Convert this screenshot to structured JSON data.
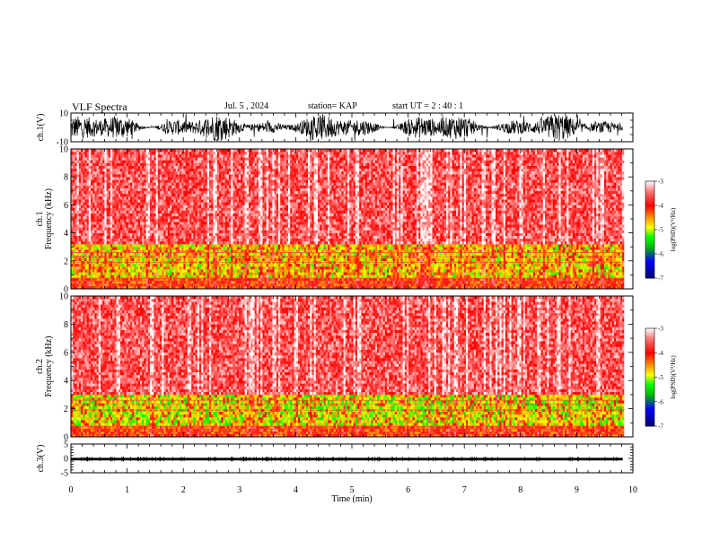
{
  "header": {
    "title": "VLF Spectra",
    "date": "Jul. 5 , 2024",
    "station": "station= KAP",
    "start": "start UT = 2 : 40 : 1"
  },
  "colors": {
    "background": "#ffffff",
    "spectrogram_scale": [
      "#00006e",
      "#0000ff",
      "#00b000",
      "#00ff00",
      "#ffff00",
      "#ff0000",
      "#ffffff"
    ]
  },
  "chart_data": [
    {
      "type": "line",
      "name": "ch1-waveform",
      "ylabel": "ch.1(V)",
      "ylim": [
        -10,
        10
      ],
      "yticks": [
        "10",
        "-10"
      ],
      "description_values": {
        "amplitude_min": -10,
        "amplitude_max": 10
      }
    },
    {
      "type": "heatmap",
      "name": "ch1-spectrogram",
      "ylabel": "ch.1 Frequency (kHz)",
      "ylim": [
        0,
        10
      ],
      "yticks": [
        "0",
        "2",
        "4",
        "6",
        "8",
        "10"
      ],
      "xlim": [
        0,
        10
      ],
      "colorbar": {
        "label": "log(PSD)(V²/Hz)",
        "range": [
          -7,
          -3
        ],
        "ticks": [
          "-3",
          "-4",
          "-5",
          "-6",
          "-7"
        ]
      },
      "bands": [
        {
          "range_khz": [
            0,
            0.8
          ],
          "level": -4.2
        },
        {
          "range_khz": [
            0.8,
            3.2
          ],
          "level": -4.8
        },
        {
          "range_khz": [
            3.2,
            10
          ],
          "level": -3.6
        }
      ]
    },
    {
      "type": "heatmap",
      "name": "ch2-spectrogram",
      "ylabel": "ch.2 Frequency (kHz)",
      "ylim": [
        0,
        10
      ],
      "yticks": [
        "0",
        "2",
        "4",
        "6",
        "8",
        "10"
      ],
      "xlim": [
        0,
        10
      ],
      "colorbar": {
        "label": "log(PSD)(V²/Hz)",
        "range": [
          -7,
          -3
        ],
        "ticks": [
          "-3",
          "-4",
          "-5",
          "-6",
          "-7"
        ]
      },
      "bands": [
        {
          "range_khz": [
            0,
            0.8
          ],
          "level": -4.2
        },
        {
          "range_khz": [
            0.8,
            3.0
          ],
          "level": -5.0
        },
        {
          "range_khz": [
            3.0,
            10
          ],
          "level": -3.6
        }
      ]
    },
    {
      "type": "line",
      "name": "ch3-waveform",
      "ylabel": "ch.3(V)",
      "ylim": [
        -5,
        5
      ],
      "yticks": [
        "5",
        "0",
        "-5"
      ],
      "xlabel": "Time (min)",
      "xlim": [
        0,
        10
      ],
      "xticks": [
        "0",
        "1",
        "2",
        "3",
        "4",
        "5",
        "6",
        "7",
        "8",
        "9",
        "10"
      ],
      "level_range": [
        -0.7,
        0.2
      ]
    }
  ],
  "data_extent_min": 9.82
}
